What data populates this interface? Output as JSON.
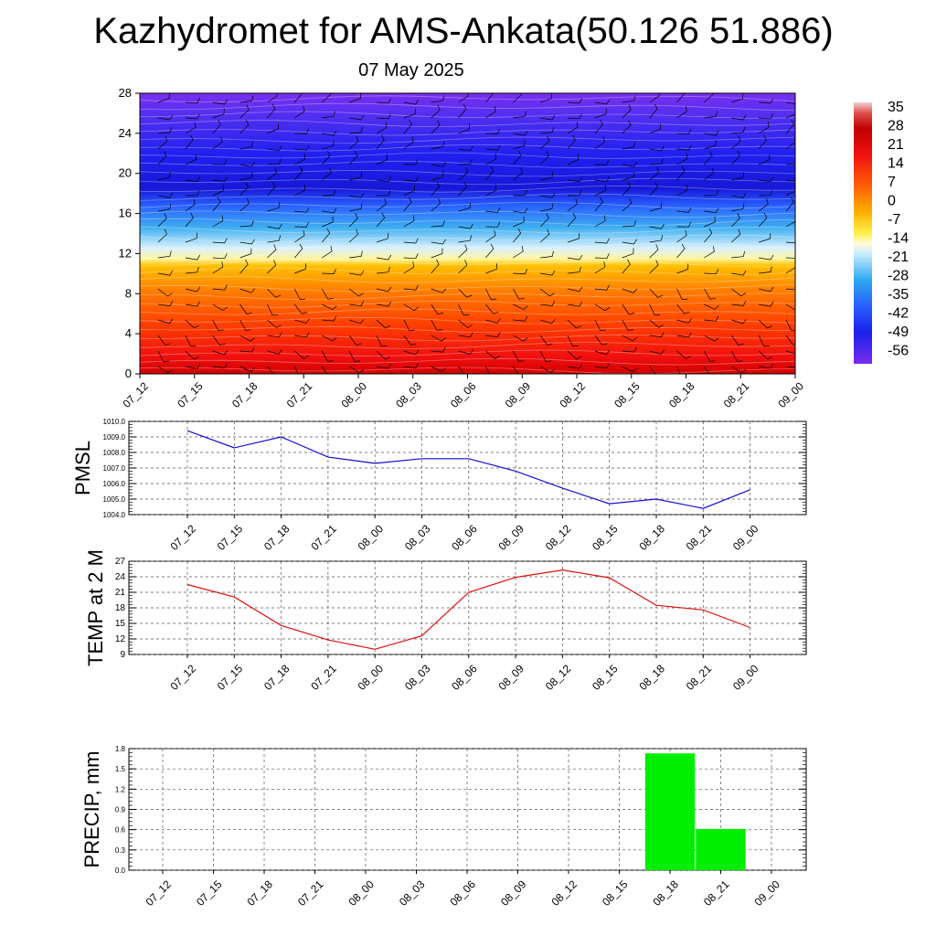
{
  "header": {
    "title": "Kazhydromet for AMS-Ankata(50.126 51.886)",
    "date": "07 May 2025"
  },
  "colorbar": {
    "labels": [
      "35",
      "28",
      "21",
      "14",
      "7",
      "0",
      "-7",
      "-14",
      "-21",
      "-28",
      "-35",
      "-42",
      "-49",
      "-56"
    ],
    "colors": {
      "top_light": "#f0c8c8",
      "dark_red": "#c00000",
      "red": "#f01010",
      "orange": "#ff7a00",
      "amber": "#ffb000",
      "yellow": "#fff04a",
      "pale": "#fffbd8",
      "light_blue": "#a8dcf8",
      "cyan_blue": "#30a8f0",
      "mid_blue": "#2860ff",
      "blue": "#1a20e8",
      "violet": "#7a2cf0"
    }
  },
  "chart_data": [
    {
      "type": "heatmap",
      "title": "",
      "xlabel": "",
      "ylabel": "",
      "x": [
        "07_12",
        "07_15",
        "07_18",
        "07_21",
        "08_00",
        "08_03",
        "08_06",
        "08_09",
        "08_12",
        "08_15",
        "08_18",
        "08_21",
        "09_00"
      ],
      "yticks": [
        "0",
        "4",
        "8",
        "12",
        "16",
        "20",
        "24",
        "28"
      ],
      "ylim": [
        0,
        28
      ],
      "zlim": [
        -56,
        35
      ],
      "overlays": "contour lines and wind barbs"
    },
    {
      "type": "line",
      "ylabel": "PMSL",
      "ylim": [
        1004.0,
        1010.0
      ],
      "yticks": [
        "1004.0",
        "1005.0",
        "1006.0",
        "1007.0",
        "1008.0",
        "1009.0",
        "1010.0"
      ],
      "categories": [
        "07_12",
        "07_15",
        "07_18",
        "07_21",
        "08_00",
        "08_03",
        "08_06",
        "08_09",
        "08_12",
        "08_15",
        "08_18",
        "08_21",
        "09_00"
      ],
      "values": [
        1009.4,
        1008.3,
        1009.0,
        1007.7,
        1007.3,
        1007.6,
        1007.6,
        1006.8,
        1005.7,
        1004.7,
        1005.0,
        1004.4,
        1005.6
      ],
      "line_color": "#1010d0",
      "grid": true
    },
    {
      "type": "line",
      "ylabel": "TEMP at 2 M",
      "ylim": [
        9,
        27
      ],
      "yticks": [
        "9",
        "12",
        "15",
        "18",
        "21",
        "24",
        "27"
      ],
      "categories": [
        "07_12",
        "07_15",
        "07_18",
        "07_21",
        "08_00",
        "08_03",
        "08_06",
        "08_09",
        "08_12",
        "08_15",
        "08_18",
        "08_21",
        "09_00"
      ],
      "values": [
        22.5,
        20.1,
        14.6,
        11.8,
        10.0,
        12.6,
        21.0,
        23.9,
        25.3,
        23.8,
        18.5,
        17.6,
        14.2
      ],
      "line_color": "#e01010",
      "grid": true
    },
    {
      "type": "bar",
      "ylabel": "PRECIP, mm",
      "ylim": [
        0,
        1.8
      ],
      "yticks": [
        "0.0",
        "0.3",
        "0.6",
        "0.9",
        "1.2",
        "1.5",
        "1.8"
      ],
      "categories": [
        "07_12",
        "07_15",
        "07_18",
        "07_21",
        "08_00",
        "08_03",
        "08_06",
        "08_09",
        "08_12",
        "08_15",
        "08_18",
        "08_21",
        "09_00"
      ],
      "values": [
        0,
        0,
        0,
        0,
        0,
        0,
        0,
        0,
        0,
        0,
        1.73,
        0.61,
        0
      ],
      "bar_color": "#00ee00",
      "grid": true
    }
  ]
}
